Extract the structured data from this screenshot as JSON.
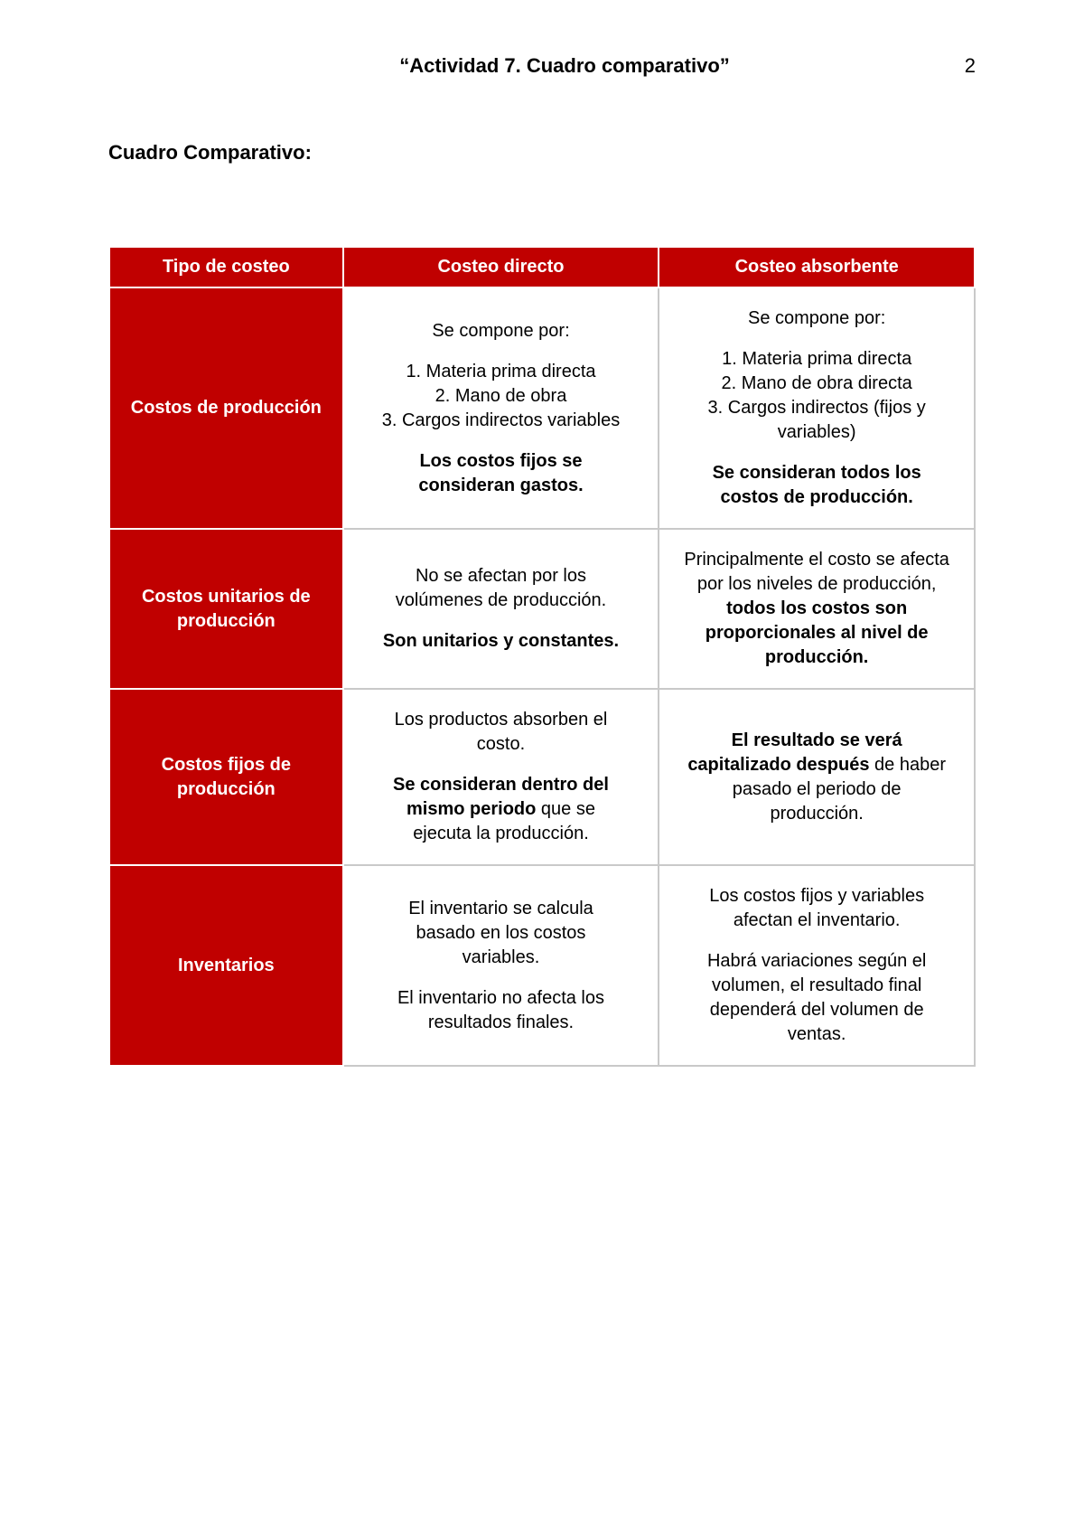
{
  "header": {
    "title": "“Actividad 7. Cuadro comparativo”",
    "page_number": "2"
  },
  "subtitle": "Cuadro Comparativo:",
  "table": {
    "columns": [
      "Tipo de costeo",
      "Costeo directo",
      "Costeo absorbente"
    ],
    "column_widths_pct": [
      27,
      36.5,
      36.5
    ],
    "header_bg": "#c00000",
    "header_fg": "#ffffff",
    "rowhead_bg": "#c00000",
    "rowhead_fg": "#ffffff",
    "cell_bg": "#ffffff",
    "cell_fg": "#000000",
    "border_color": "#c9c9c9",
    "rows": [
      {
        "label": "Costos de producción",
        "direct": {
          "p1": "Se compone por:",
          "l1": "1. Materia prima directa",
          "l2": "2. Mano de obra",
          "l3": "3. Cargos indirectos variables",
          "p2a": "Los costos fijos se",
          "p2b": "consideran gastos."
        },
        "absorb": {
          "p1": "Se compone por:",
          "l1": "1. Materia prima directa",
          "l2": "2. Mano de obra directa",
          "l3a": "3. Cargos indirectos (fijos y",
          "l3b": "variables)",
          "p2a": "Se consideran todos los",
          "p2b": "costos de producción."
        }
      },
      {
        "label": "Costos unitarios de producción",
        "direct": {
          "p1a": "No se afectan por los",
          "p1b": "volúmenes de producción.",
          "p2": "Son unitarios y constantes."
        },
        "absorb": {
          "p1a": "Principalmente el costo se afecta",
          "p1b": "por los niveles de producción,",
          "p1c": "todos los costos son",
          "p1d": "proporcionales al nivel de",
          "p1e": "producción."
        }
      },
      {
        "label": "Costos fijos de producción",
        "direct": {
          "p1a": "Los productos absorben el",
          "p1b": "costo.",
          "p2a": "Se consideran dentro del",
          "p2b": "mismo periodo",
          "p2c": " que se",
          "p2d": "ejecuta la producción."
        },
        "absorb": {
          "p1a": "El resultado se verá",
          "p1b": "capitalizado después",
          "p1c": " de haber",
          "p1d": "pasado el periodo de",
          "p1e": "producción."
        }
      },
      {
        "label": "Inventarios",
        "direct": {
          "p1a": "El inventario se calcula",
          "p1b": "basado en los costos",
          "p1c": "variables.",
          "p2a": "El inventario no afecta los",
          "p2b": "resultados finales."
        },
        "absorb": {
          "p1a": "Los costos fijos y variables",
          "p1b": "afectan el inventario.",
          "p2a": "Habrá variaciones según el",
          "p2b": "volumen, el resultado final",
          "p2c": "dependerá del volumen de",
          "p2d": "ventas."
        }
      }
    ]
  }
}
